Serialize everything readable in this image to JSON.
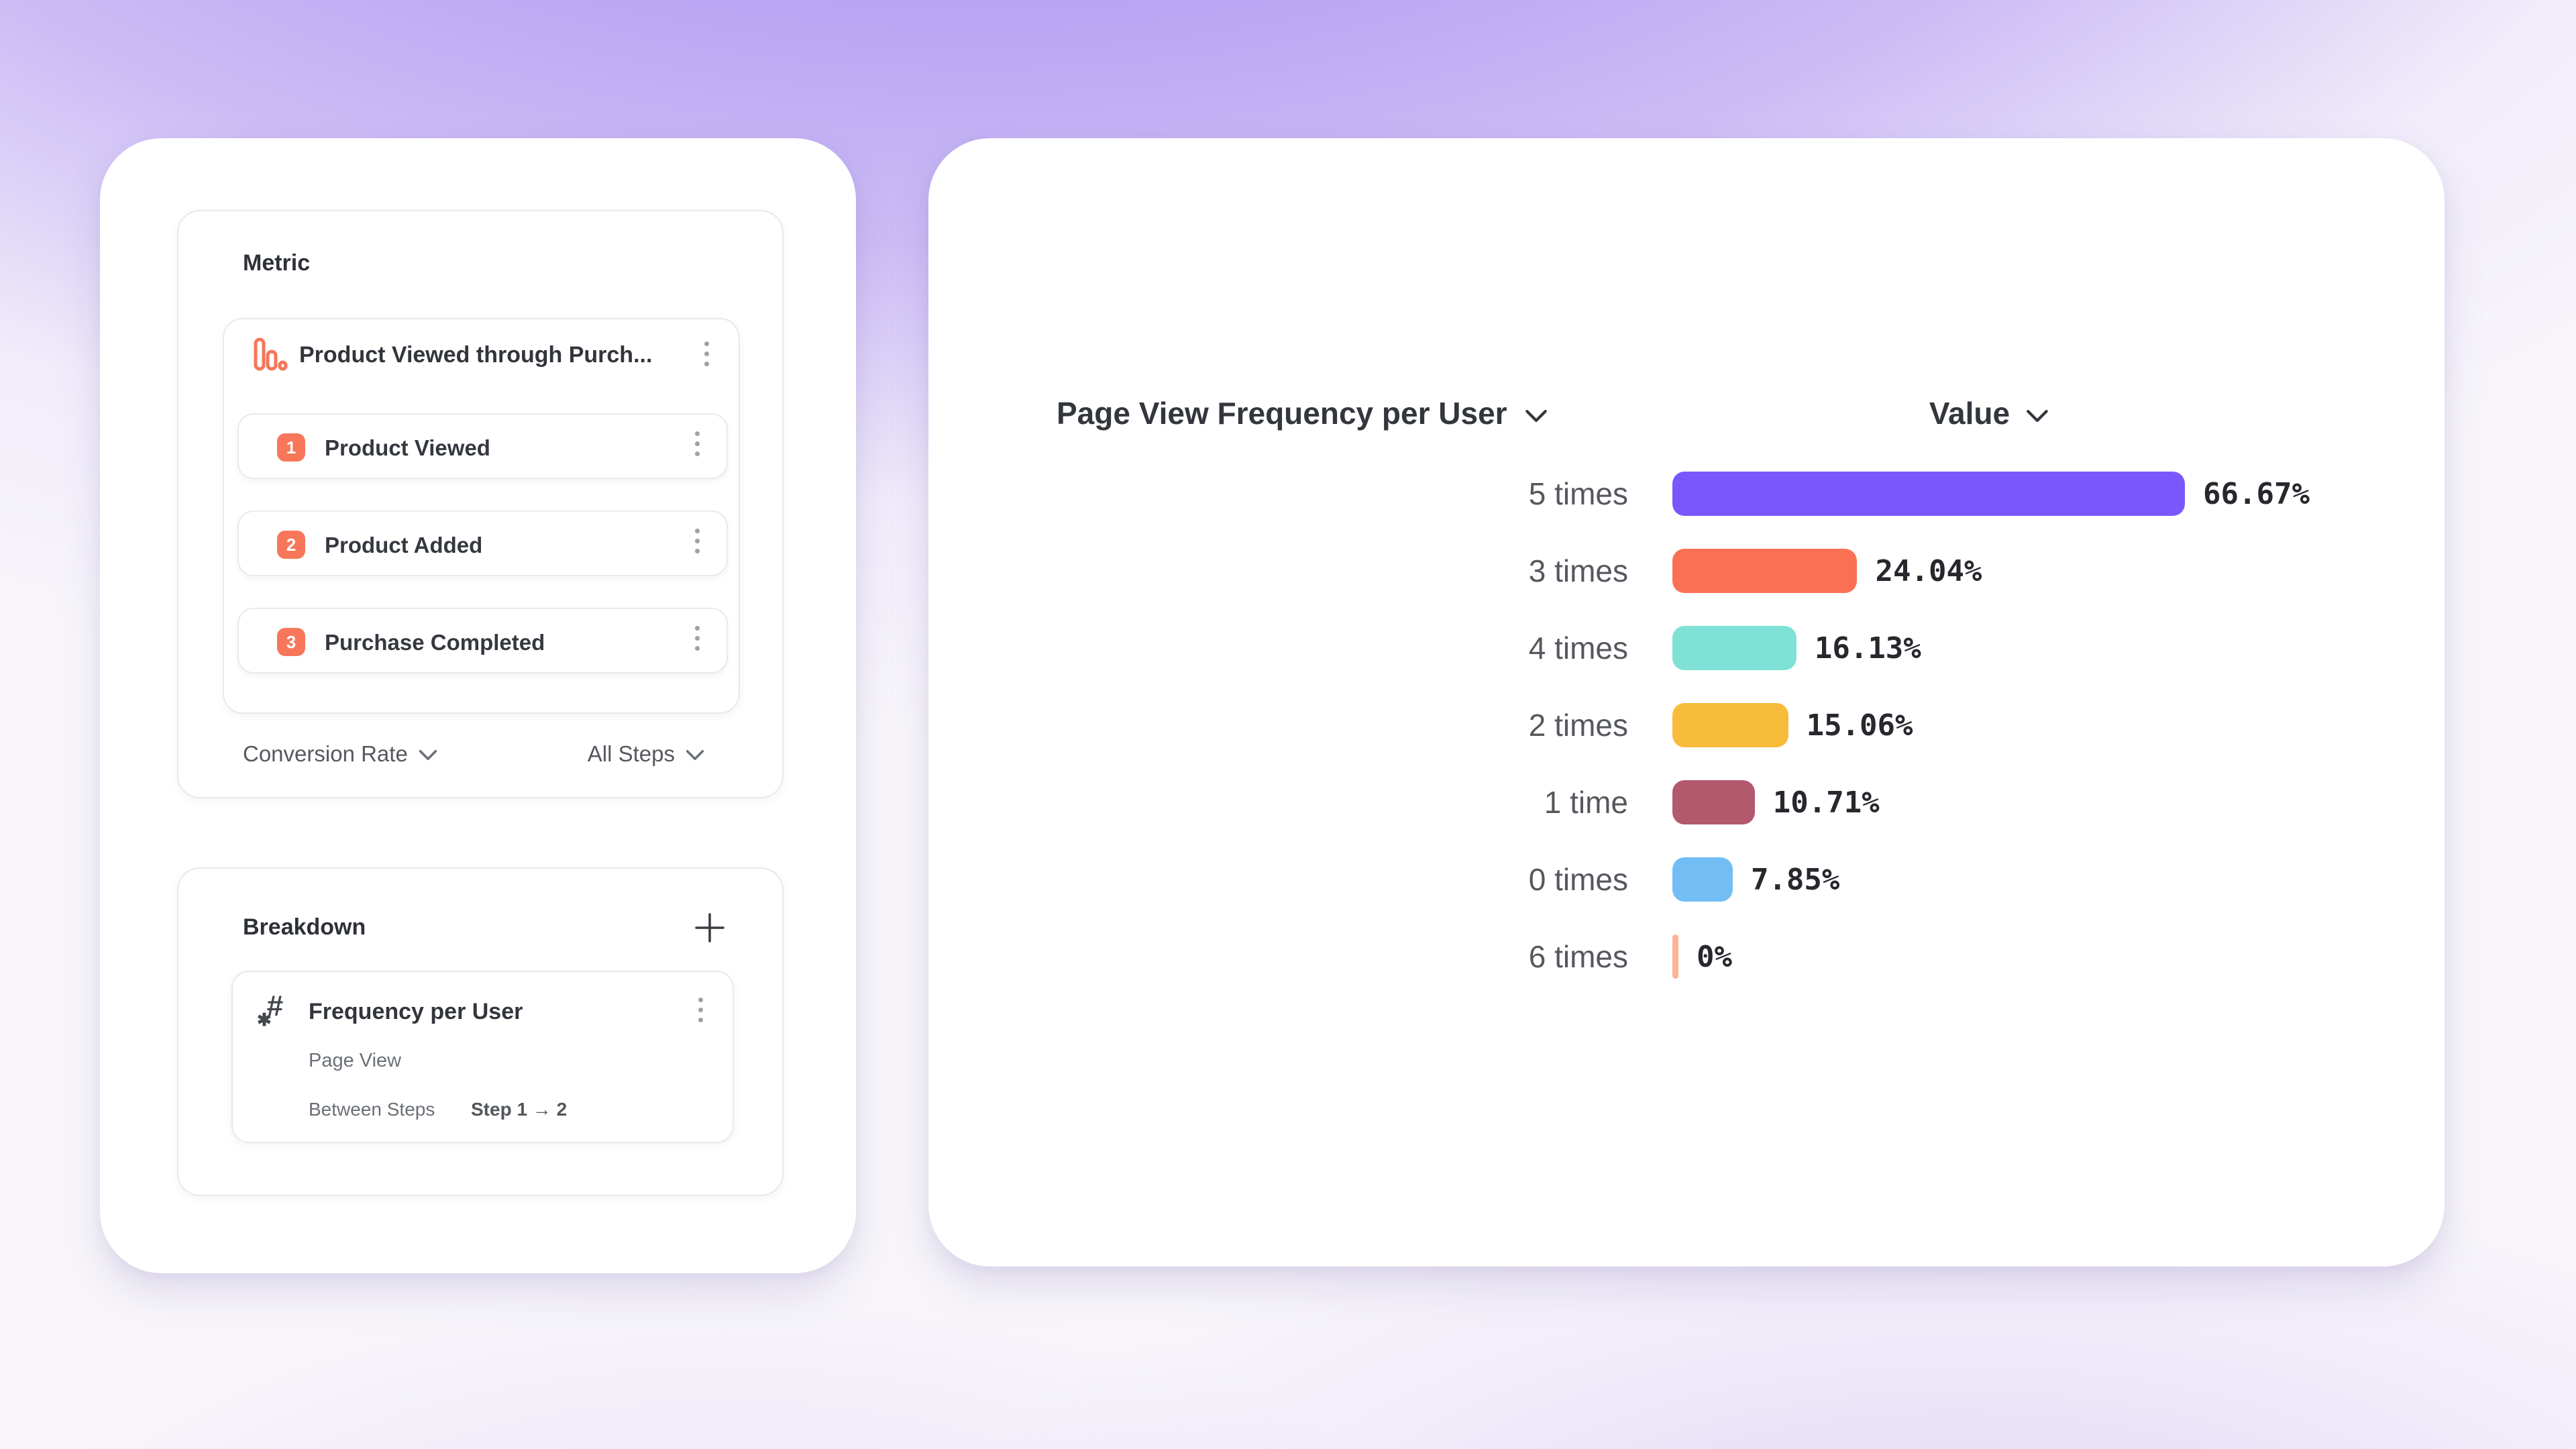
{
  "colors": {
    "accent_orange": "#f87659",
    "card_border": "#e8e8ee",
    "title_text": "#2e3138",
    "muted_text": "#55585e",
    "value_text": "#26282d"
  },
  "left_panel": {
    "metric_section": {
      "title": "Metric",
      "funnel": {
        "icon": "bar-chart-funnel-icon",
        "title": "Product Viewed through Purch...",
        "menu_icon": "kebab-menu-icon",
        "steps": [
          {
            "number": "1",
            "label": "Product Viewed"
          },
          {
            "number": "2",
            "label": "Product Added"
          },
          {
            "number": "3",
            "label": "Purchase Completed"
          }
        ]
      },
      "footer": {
        "measurement_label": "Conversion Rate",
        "measurement_icon": "chevron-down-icon",
        "steps_scope_label": "All Steps",
        "steps_scope_icon": "chevron-down-icon"
      }
    },
    "breakdown_section": {
      "title": "Breakdown",
      "add_icon": "plus-icon",
      "item": {
        "icon": "numeric-hash-icon",
        "hash_glyph": "#",
        "asterisk_glyph": "✱",
        "title": "Frequency per User",
        "menu_icon": "kebab-menu-icon",
        "property": "Page View",
        "scope_label": "Between Steps",
        "scope_value": "Step 1 → 2"
      }
    }
  },
  "chart_panel": {
    "category_header": "Page View Frequency per User",
    "category_header_icon": "chevron-down-icon",
    "value_header": "Value",
    "value_header_icon": "chevron-down-icon"
  },
  "chart_data": {
    "type": "bar",
    "orientation": "horizontal",
    "title": "Page View Frequency per User",
    "value_axis_label": "Value",
    "categories": [
      "5 times",
      "3 times",
      "4 times",
      "2 times",
      "1 time",
      "0 times",
      "6 times"
    ],
    "values": [
      66.67,
      24.04,
      16.13,
      15.06,
      10.71,
      7.85,
      0
    ],
    "value_labels": [
      "66.67%",
      "24.04%",
      "16.13%",
      "15.06%",
      "10.71%",
      "7.85%",
      "0%"
    ],
    "bar_colors": [
      "#7857fb",
      "#fb7053",
      "#7fe1d5",
      "#f8bc3b",
      "#b2596e",
      "#72bef4",
      "#ffb295"
    ],
    "xlim": [
      0,
      100
    ],
    "grid": false,
    "legend": false
  }
}
